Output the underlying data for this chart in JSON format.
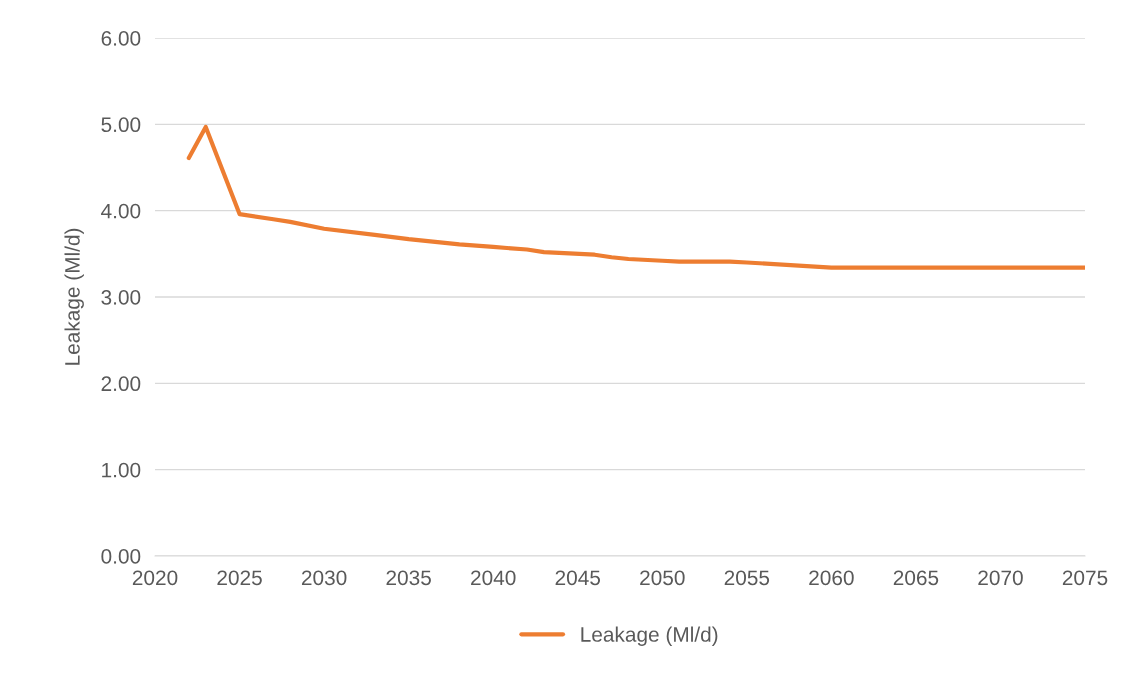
{
  "chart_data": {
    "type": "line",
    "ylabel": "Leakage (Ml/d)",
    "x": [
      2022,
      2023,
      2025,
      2027,
      2028,
      2030,
      2033,
      2035,
      2037,
      2038,
      2040,
      2042,
      2043,
      2046,
      2047,
      2048,
      2050,
      2051,
      2054,
      2055,
      2060,
      2065,
      2070,
      2075
    ],
    "series": [
      {
        "name": "Leakage (Ml/d)",
        "color": "#ed7d31",
        "values": [
          4.61,
          4.97,
          3.96,
          3.9,
          3.87,
          3.79,
          3.72,
          3.67,
          3.63,
          3.61,
          3.58,
          3.55,
          3.52,
          3.49,
          3.46,
          3.44,
          3.42,
          3.41,
          3.41,
          3.4,
          3.34,
          3.34,
          3.34,
          3.34
        ]
      }
    ],
    "xlim": [
      2020,
      2075
    ],
    "xticks": [
      2020,
      2025,
      2030,
      2035,
      2040,
      2045,
      2050,
      2055,
      2060,
      2065,
      2070,
      2075
    ],
    "ylim": [
      0,
      6
    ],
    "yticks": [
      {
        "value": 0,
        "label": "0.00"
      },
      {
        "value": 1,
        "label": "1.00"
      },
      {
        "value": 2,
        "label": "2.00"
      },
      {
        "value": 3,
        "label": "3.00"
      },
      {
        "value": 4,
        "label": "4.00"
      },
      {
        "value": 5,
        "label": "5.00"
      },
      {
        "value": 6,
        "label": "6.00"
      }
    ],
    "grid": "y",
    "legend": "bottom",
    "marker": "none",
    "line_style": "solid"
  }
}
